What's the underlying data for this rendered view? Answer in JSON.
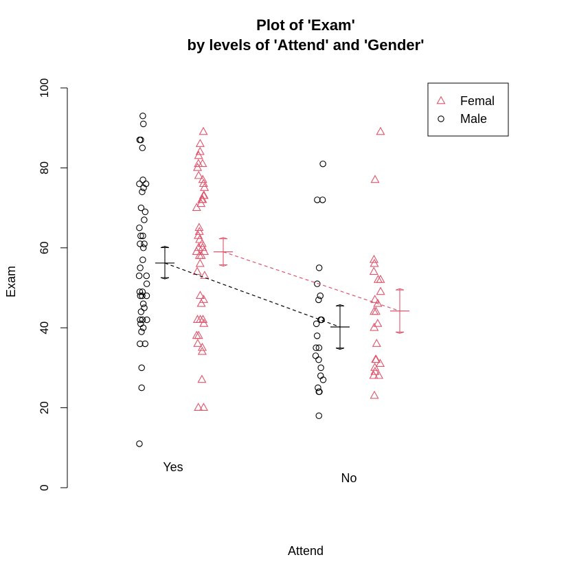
{
  "chart_data": {
    "type": "scatter",
    "title_line1": "Plot of 'Exam'",
    "title_line2": "by levels of 'Attend' and 'Gender'",
    "xlabel": "Attend",
    "ylabel": "Exam",
    "ylim": [
      0,
      100
    ],
    "yticks": [
      "0",
      "20",
      "40",
      "60",
      "80",
      "100"
    ],
    "categories": [
      "Yes",
      "No"
    ],
    "colors": {
      "Femal": "#DF536B",
      "Male": "#000000"
    },
    "legend": {
      "position": "top-right",
      "entries": [
        "Femal",
        "Male"
      ]
    },
    "series": [
      {
        "name": "Male",
        "marker": "circle",
        "values": {
          "Yes": [
            93,
            91,
            87,
            87,
            85,
            77,
            76,
            76,
            75,
            74,
            70,
            69,
            67,
            65,
            63,
            63,
            61,
            61,
            60,
            57,
            55,
            53,
            53,
            51,
            49,
            49,
            48,
            48,
            48,
            46,
            45,
            44,
            42,
            42,
            42,
            41,
            40,
            39,
            36,
            36,
            30,
            25,
            11
          ],
          "No": [
            81,
            72,
            72,
            55,
            51,
            48,
            47,
            42,
            42,
            41,
            38,
            35,
            35,
            33,
            32,
            30,
            28,
            27,
            25,
            24,
            24,
            18
          ]
        },
        "mean": {
          "Yes": 56.2,
          "No": 40.2
        },
        "ci": {
          "Yes": [
            52.2,
            60.4
          ],
          "No": [
            34.6,
            45.8
          ]
        }
      },
      {
        "name": "Femal",
        "marker": "triangle",
        "values": {
          "Yes": [
            89,
            86,
            84,
            83,
            81,
            81,
            80,
            78,
            77,
            76,
            75,
            73,
            73,
            72,
            72,
            71,
            70,
            65,
            64,
            63,
            62,
            61,
            60,
            60,
            59,
            59,
            58,
            58,
            56,
            54,
            53,
            48,
            47,
            46,
            42,
            42,
            42,
            41,
            38,
            38,
            36,
            35,
            34,
            27,
            20,
            20
          ],
          "No": [
            89,
            77,
            57,
            56,
            54,
            52,
            52,
            49,
            47,
            46,
            44,
            44,
            41,
            40,
            36,
            32,
            32,
            31,
            30,
            29,
            28,
            28,
            23
          ]
        },
        "mean": {
          "Yes": 59.0,
          "No": 44.2
        },
        "ci": {
          "Yes": [
            55.4,
            62.6
          ],
          "No": [
            38.6,
            49.8
          ]
        }
      }
    ]
  }
}
